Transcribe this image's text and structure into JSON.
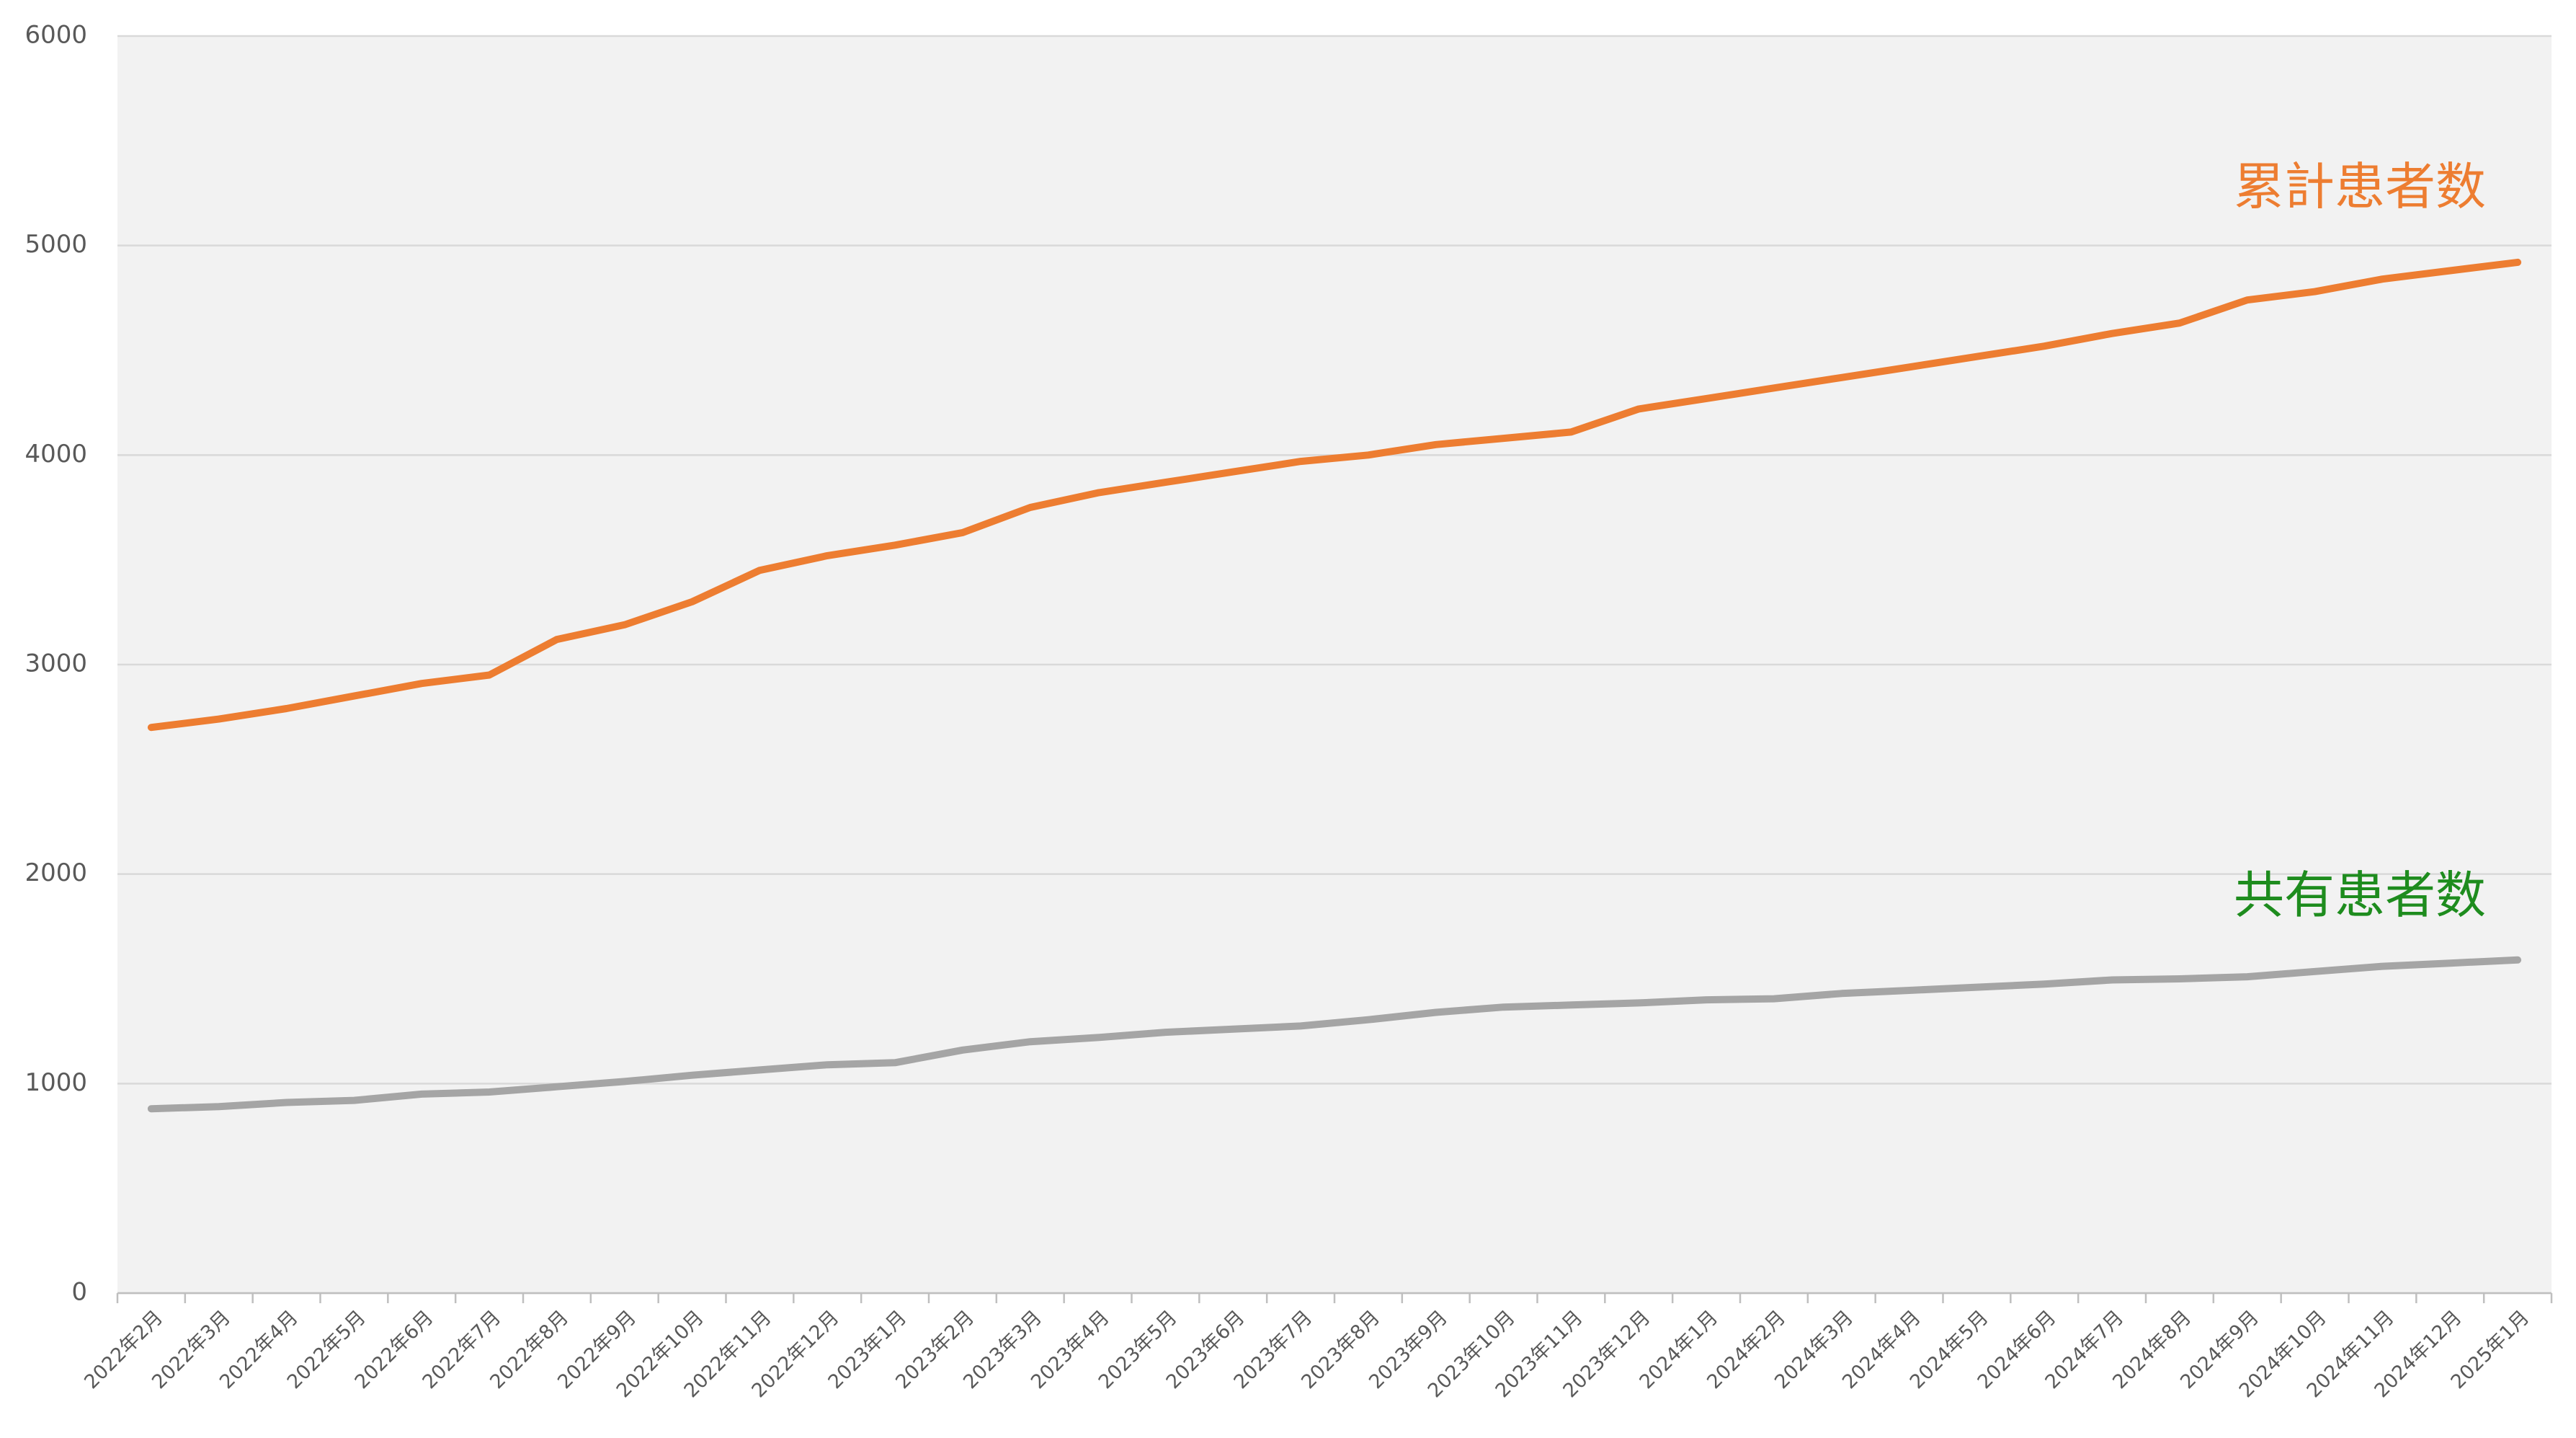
{
  "chart_data": {
    "type": "line",
    "categories": [
      "2022年2月",
      "2022年3月",
      "2022年4月",
      "2022年5月",
      "2022年6月",
      "2022年7月",
      "2022年8月",
      "2022年9月",
      "2022年10月",
      "2022年11月",
      "2022年12月",
      "2023年1月",
      "2023年2月",
      "2023年3月",
      "2023年4月",
      "2023年5月",
      "2023年6月",
      "2023年7月",
      "2023年8月",
      "2023年9月",
      "2023年10月",
      "2023年11月",
      "2023年12月",
      "2024年1月",
      "2024年2月",
      "2024年3月",
      "2024年4月",
      "2024年5月",
      "2024年6月",
      "2024年7月",
      "2024年8月",
      "2024年9月",
      "2024年10月",
      "2024年11月",
      "2024年12月",
      "2025年1月"
    ],
    "series": [
      {
        "name": "累計患者数",
        "color": "#ed7d31",
        "label_color": "#ed7d31",
        "values": [
          2700,
          2740,
          2790,
          2850,
          2910,
          2950,
          3120,
          3190,
          3300,
          3450,
          3520,
          3570,
          3630,
          3750,
          3820,
          3870,
          3920,
          3970,
          4000,
          4050,
          4080,
          4110,
          4220,
          4270,
          4320,
          4370,
          4420,
          4470,
          4520,
          4580,
          4630,
          4740,
          4780,
          4840,
          4880,
          4920
        ]
      },
      {
        "name": "共有患者数",
        "color": "#a5a5a5",
        "label_color": "#1e8c1e",
        "values": [
          880,
          890,
          910,
          920,
          950,
          960,
          985,
          1010,
          1040,
          1065,
          1090,
          1100,
          1160,
          1200,
          1220,
          1245,
          1260,
          1275,
          1305,
          1340,
          1365,
          1375,
          1385,
          1400,
          1405,
          1430,
          1445,
          1460,
          1475,
          1495,
          1500,
          1510,
          1535,
          1560,
          1575,
          1590
        ]
      }
    ],
    "ylim": [
      0,
      6000
    ],
    "yticks": [
      0,
      1000,
      2000,
      3000,
      4000,
      5000,
      6000
    ],
    "grid": true
  }
}
